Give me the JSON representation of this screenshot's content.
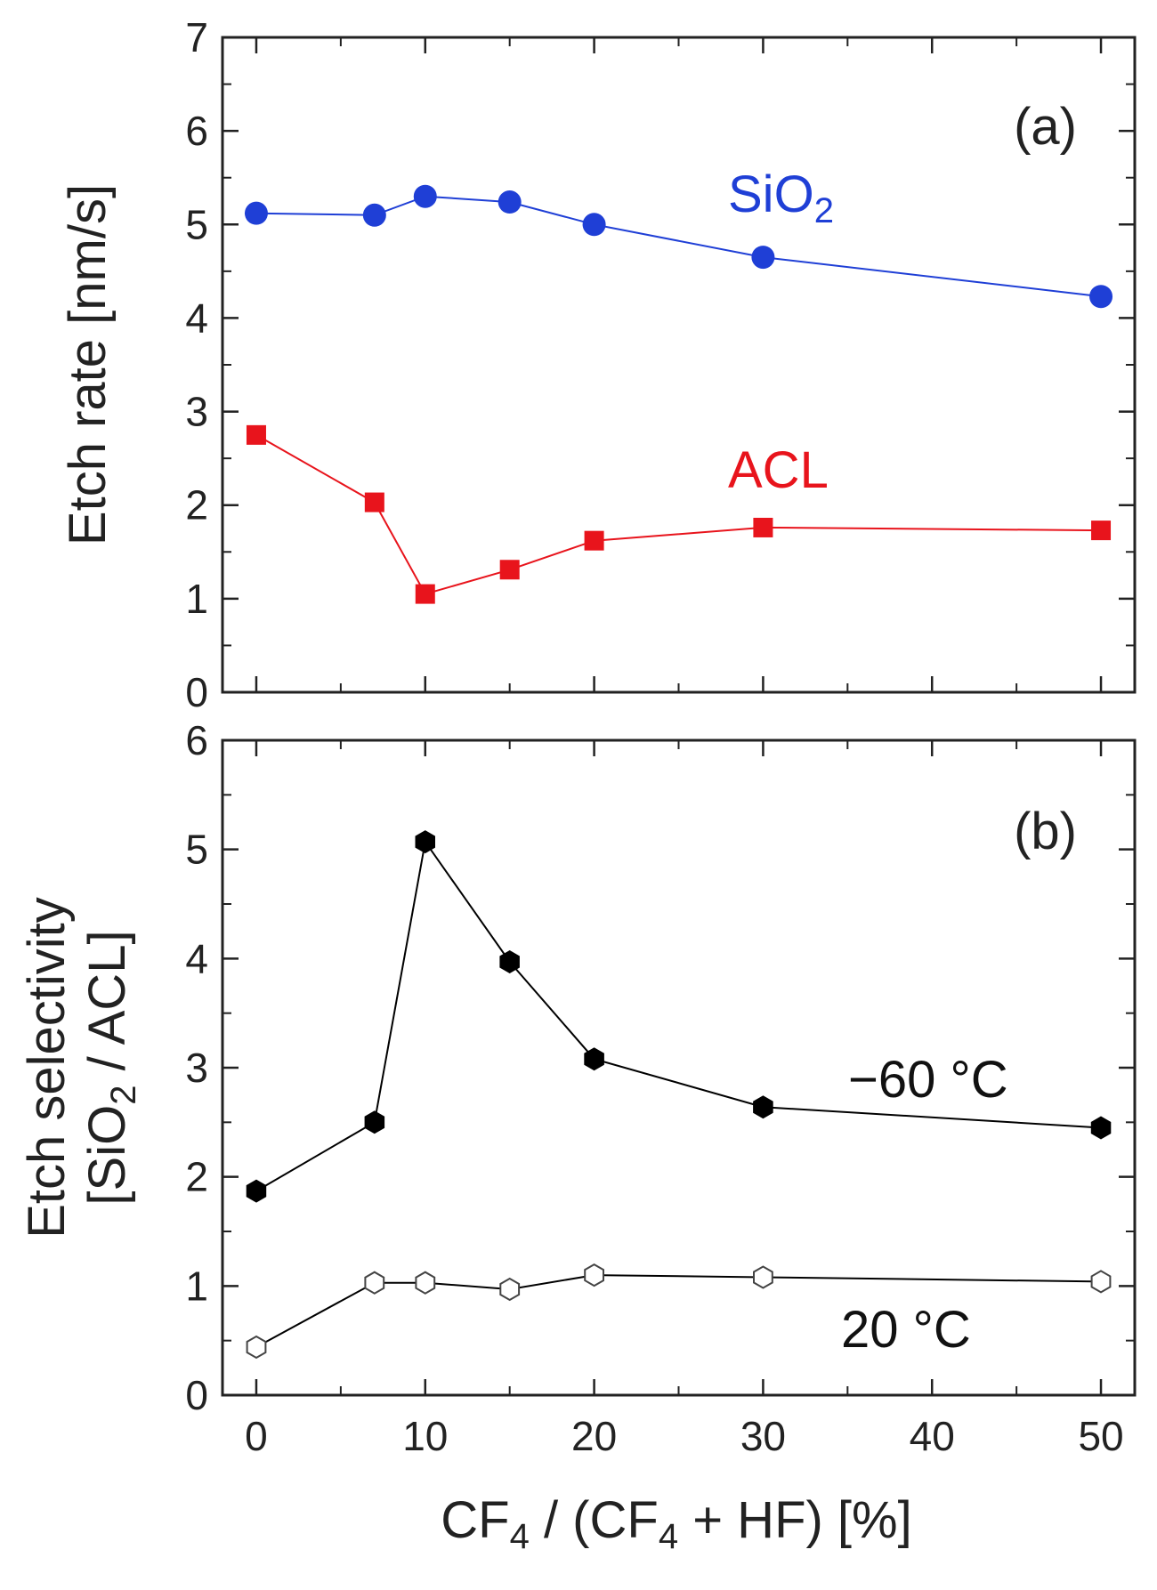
{
  "chart_data": [
    {
      "panel": "(a)",
      "type": "line",
      "ylabel": "Etch rate [nm/s]",
      "xlabel": "",
      "xlim": [
        -2,
        52
      ],
      "ylim": [
        0,
        7
      ],
      "xticks": [
        0,
        10,
        20,
        30,
        40,
        50
      ],
      "yticks": [
        0,
        1,
        2,
        3,
        4,
        5,
        6,
        7
      ],
      "series": [
        {
          "name": "SiO2",
          "label_main": "SiO",
          "label_sub": "2",
          "color": "#1f3fd6",
          "marker": "circle",
          "x": [
            0,
            7,
            10,
            15,
            20,
            30,
            50
          ],
          "values": [
            5.12,
            5.1,
            5.3,
            5.24,
            5.0,
            4.65,
            4.23
          ]
        },
        {
          "name": "ACL",
          "label_main": "ACL",
          "label_sub": "",
          "color": "#e8141c",
          "marker": "square",
          "x": [
            0,
            7,
            10,
            15,
            20,
            30,
            50
          ],
          "values": [
            2.75,
            2.03,
            1.05,
            1.31,
            1.62,
            1.76,
            1.73
          ]
        }
      ]
    },
    {
      "panel": "(b)",
      "type": "line",
      "ylabel_line1": "Etch selectivity",
      "ylabel_line2_pre": "[SiO",
      "ylabel_line2_sub": "2",
      "ylabel_line2_post": " / ACL]",
      "xlabel_pre": "CF",
      "xlabel_sub1": "4",
      "xlabel_mid": " / (CF",
      "xlabel_sub2": "4",
      "xlabel_post": " + HF) [%]",
      "xlim": [
        -2,
        52
      ],
      "ylim": [
        0,
        6
      ],
      "xticks": [
        0,
        10,
        20,
        30,
        40,
        50
      ],
      "yticks": [
        0,
        1,
        2,
        3,
        4,
        5,
        6
      ],
      "series": [
        {
          "name": "−60 °C",
          "label": "−60 °C",
          "color": "#000000",
          "marker": "hexagon-filled",
          "x": [
            0,
            7,
            10,
            15,
            20,
            30,
            50
          ],
          "values": [
            1.87,
            2.5,
            5.07,
            3.97,
            3.08,
            2.64,
            2.45
          ]
        },
        {
          "name": "20 °C",
          "label": "20 °C",
          "color": "#000000",
          "marker": "hexagon-open",
          "x": [
            0,
            7,
            10,
            15,
            20,
            30,
            50
          ],
          "values": [
            0.44,
            1.03,
            1.03,
            0.97,
            1.1,
            1.08,
            1.04
          ]
        }
      ]
    }
  ]
}
